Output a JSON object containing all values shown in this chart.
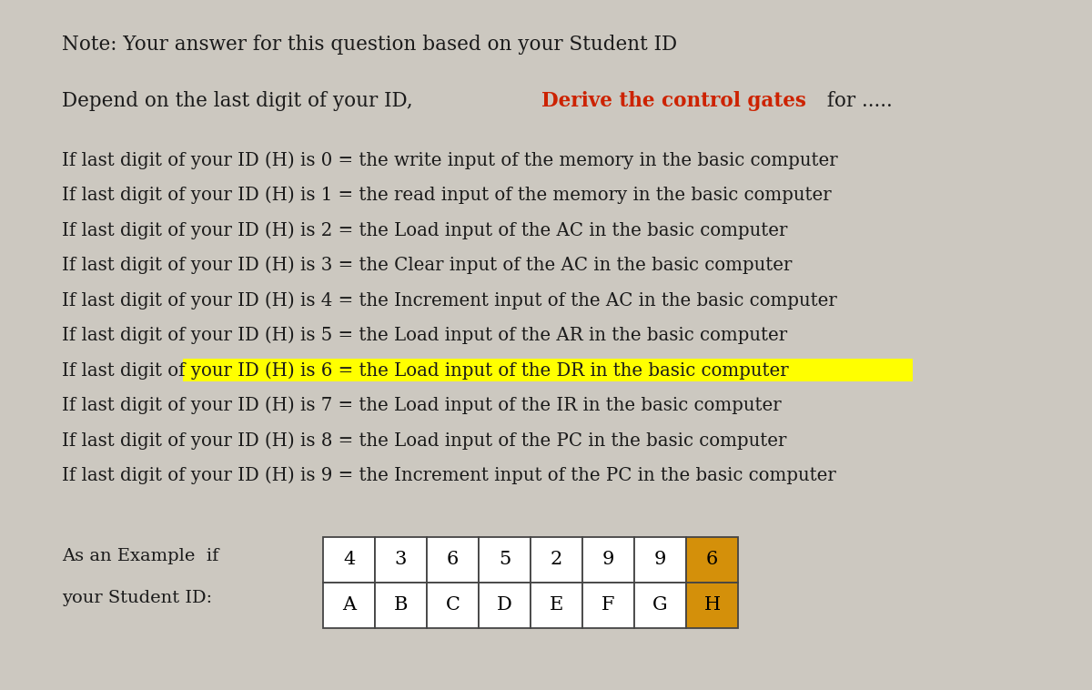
{
  "background_color": "#ccc8c0",
  "note_line": "Note: Your answer for this question based on your Student ID",
  "depend_line_prefix": "Depend on the last digit of your ID, ",
  "depend_line_bold_red": "Derive the control gates",
  "depend_line_suffix": " for .....",
  "lines": [
    {
      "text": "If last digit of your ID (H) is 0 = the write input of the memory in the basic computer",
      "highlight": false
    },
    {
      "text": "If last digit of your ID (H) is 1 = the read input of the memory in the basic computer",
      "highlight": false
    },
    {
      "text": "If last digit of your ID (H) is 2 = the Load input of the AC in the basic computer",
      "highlight": false
    },
    {
      "text": "If last digit of your ID (H) is 3 = the Clear input of the AC in the basic computer",
      "highlight": false
    },
    {
      "text": "If last digit of your ID (H) is 4 = the Increment input of the AC in the basic computer",
      "highlight": false
    },
    {
      "text": "If last digit of your ID (H) is 5 = the Load input of the AR in the basic computer",
      "highlight": false
    },
    {
      "text": "If last digit of your ID (H) is 6 = the Load input of the DR in the basic computer",
      "highlight": true
    },
    {
      "text": "If last digit of your ID (H) is 7 = the Load input of the IR in the basic computer",
      "highlight": false
    },
    {
      "text": "If last digit of your ID (H) is 8 = the Load input of the PC in the basic computer",
      "highlight": false
    },
    {
      "text": "If last digit of your ID (H) is 9 = the Increment input of the PC in the basic computer",
      "highlight": false
    }
  ],
  "example_label1": "As an Example  if",
  "example_label2": "your Student ID:",
  "table_top_values": [
    "4",
    "3",
    "6",
    "5",
    "2",
    "9",
    "9",
    "6"
  ],
  "table_bot_labels": [
    "A",
    "B",
    "C",
    "D",
    "E",
    "F",
    "G",
    "H"
  ],
  "highlight_col": 7,
  "highlight_color": "#d4900a",
  "table_bg_color": "#ffffff",
  "text_color_normal": "#1a1a1a",
  "text_color_red": "#cc2200",
  "highlight_yellow": "#ffff00",
  "font_size_main": 15.5,
  "font_size_lines": 14.2,
  "font_size_table": 15
}
